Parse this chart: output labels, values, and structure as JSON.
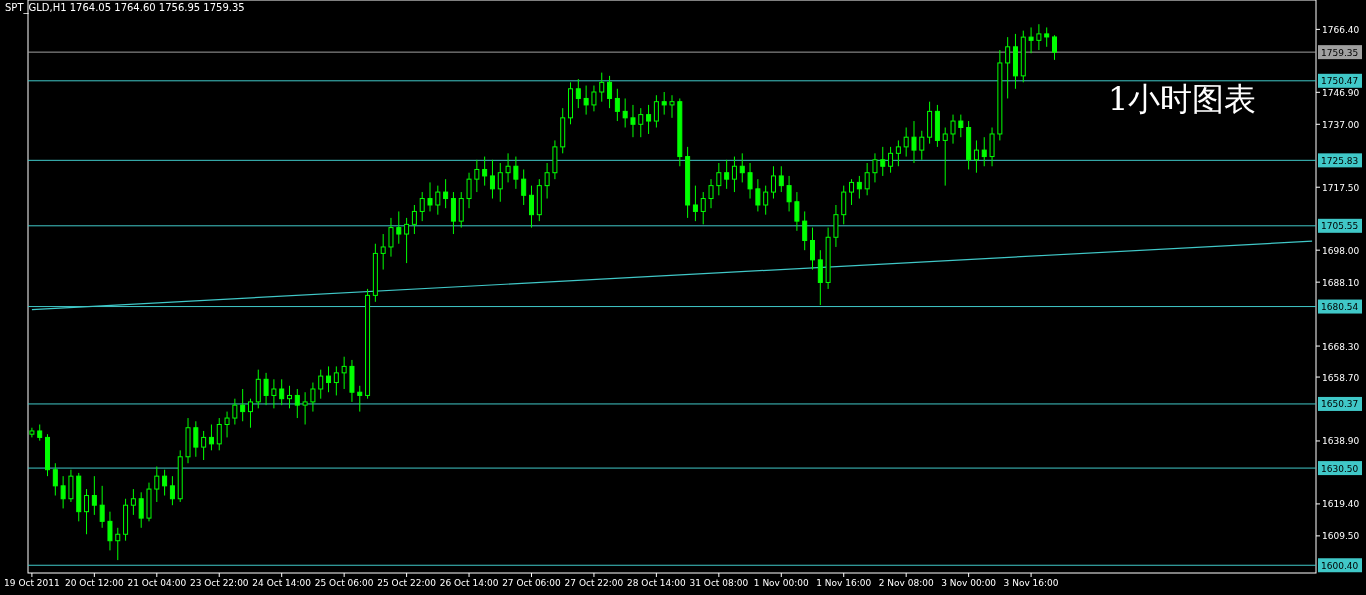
{
  "chart_data": {
    "type": "candlestick",
    "title": "SPT_GLD,H1  1764.05 1764.60 1756.95 1759.35",
    "annotations": [
      "1小时图表"
    ],
    "color": "#00ff00",
    "grid": false,
    "categories": [
      "19 Oct 2011",
      null,
      null,
      null,
      null,
      null,
      null,
      null,
      "20 Oct 12:00",
      null,
      null,
      null,
      null,
      null,
      null,
      null,
      "21 Oct 04:00",
      null,
      null,
      null,
      null,
      null,
      null,
      null,
      "23 Oct 22:00",
      null,
      null,
      null,
      null,
      null,
      null,
      null,
      "24 Oct 14:00",
      null,
      null,
      null,
      null,
      null,
      null,
      null,
      "25 Oct 06:00",
      null,
      null,
      null,
      null,
      null,
      null,
      null,
      "25 Oct 22:00",
      null,
      null,
      null,
      null,
      null,
      null,
      null,
      "26 Oct 14:00",
      null,
      null,
      null,
      null,
      null,
      null,
      null,
      "27 Oct 06:00",
      null,
      null,
      null,
      null,
      null,
      null,
      null,
      "27 Oct 22:00",
      null,
      null,
      null,
      null,
      null,
      null,
      null,
      "28 Oct 14:00",
      null,
      null,
      null,
      null,
      null,
      null,
      null,
      "31 Oct 08:00",
      null,
      null,
      null,
      null,
      null,
      null,
      null,
      "1 Nov 00:00",
      null,
      null,
      null,
      null,
      null,
      null,
      null,
      "1 Nov 16:00",
      null,
      null,
      null,
      null,
      null,
      null,
      null,
      "2 Nov 08:00",
      null,
      null,
      null,
      null,
      null,
      null,
      null,
      "3 Nov 00:00",
      null,
      null,
      null,
      null,
      null,
      null,
      null,
      "3 Nov 16:00",
      null,
      null,
      null,
      null,
      null,
      null,
      null,
      null,
      null,
      null,
      null,
      null,
      null,
      null,
      null,
      null,
      null,
      null,
      null,
      null,
      null,
      null,
      null,
      null,
      null,
      null,
      null,
      null,
      null,
      null,
      null,
      null,
      null,
      null,
      null,
      null
    ],
    "ohlc": [
      [
        1641,
        1643,
        1640,
        1642
      ],
      [
        1642,
        1644,
        1639,
        1640
      ],
      [
        1640,
        1641,
        1628,
        1630
      ],
      [
        1630,
        1632,
        1622,
        1625
      ],
      [
        1625,
        1628,
        1618,
        1621
      ],
      [
        1621,
        1630,
        1620,
        1628
      ],
      [
        1628,
        1629,
        1614,
        1617
      ],
      [
        1617,
        1624,
        1610,
        1622
      ],
      [
        1622,
        1628,
        1616,
        1619
      ],
      [
        1619,
        1625,
        1612,
        1614
      ],
      [
        1614,
        1617,
        1605,
        1608
      ],
      [
        1608,
        1612,
        1602,
        1610
      ],
      [
        1610,
        1621,
        1608,
        1619
      ],
      [
        1619,
        1624,
        1616,
        1621
      ],
      [
        1621,
        1623,
        1612,
        1615
      ],
      [
        1615,
        1626,
        1614,
        1624
      ],
      [
        1624,
        1631,
        1620,
        1628
      ],
      [
        1628,
        1630,
        1622,
        1625
      ],
      [
        1625,
        1628,
        1619,
        1621
      ],
      [
        1621,
        1636,
        1620,
        1634
      ],
      [
        1634,
        1646,
        1632,
        1643
      ],
      [
        1643,
        1645,
        1634,
        1637
      ],
      [
        1637,
        1642,
        1633,
        1640
      ],
      [
        1640,
        1644,
        1636,
        1638
      ],
      [
        1638,
        1646,
        1636,
        1644
      ],
      [
        1644,
        1648,
        1640,
        1646
      ],
      [
        1646,
        1652,
        1644,
        1650
      ],
      [
        1650,
        1655,
        1645,
        1648
      ],
      [
        1648,
        1652,
        1643,
        1651
      ],
      [
        1651,
        1661,
        1649,
        1658
      ],
      [
        1658,
        1660,
        1650,
        1653
      ],
      [
        1653,
        1658,
        1649,
        1655
      ],
      [
        1655,
        1658,
        1650,
        1652
      ],
      [
        1652,
        1656,
        1649,
        1653
      ],
      [
        1653,
        1655,
        1646,
        1650
      ],
      [
        1650,
        1654,
        1644,
        1651
      ],
      [
        1651,
        1657,
        1648,
        1655
      ],
      [
        1655,
        1661,
        1652,
        1659
      ],
      [
        1659,
        1662,
        1654,
        1657
      ],
      [
        1657,
        1662,
        1653,
        1660
      ],
      [
        1660,
        1665,
        1655,
        1662
      ],
      [
        1662,
        1664,
        1651,
        1654
      ],
      [
        1654,
        1656,
        1648,
        1653
      ],
      [
        1653,
        1686,
        1652,
        1684
      ],
      [
        1684,
        1700,
        1682,
        1697
      ],
      [
        1697,
        1703,
        1692,
        1699
      ],
      [
        1699,
        1708,
        1696,
        1705
      ],
      [
        1705,
        1710,
        1700,
        1703
      ],
      [
        1703,
        1708,
        1694,
        1706
      ],
      [
        1706,
        1712,
        1703,
        1710
      ],
      [
        1710,
        1716,
        1707,
        1714
      ],
      [
        1714,
        1719,
        1710,
        1712
      ],
      [
        1712,
        1718,
        1709,
        1716
      ],
      [
        1716,
        1720,
        1711,
        1714
      ],
      [
        1714,
        1716,
        1703,
        1707
      ],
      [
        1707,
        1716,
        1705,
        1714
      ],
      [
        1714,
        1722,
        1711,
        1720
      ],
      [
        1720,
        1726,
        1716,
        1723
      ],
      [
        1723,
        1727,
        1718,
        1721
      ],
      [
        1721,
        1726,
        1714,
        1717
      ],
      [
        1717,
        1725,
        1713,
        1722
      ],
      [
        1722,
        1728,
        1719,
        1724
      ],
      [
        1724,
        1727,
        1717,
        1720
      ],
      [
        1720,
        1723,
        1712,
        1715
      ],
      [
        1715,
        1718,
        1705,
        1709
      ],
      [
        1709,
        1720,
        1707,
        1718
      ],
      [
        1718,
        1725,
        1714,
        1722
      ],
      [
        1722,
        1732,
        1720,
        1730
      ],
      [
        1730,
        1742,
        1728,
        1739
      ],
      [
        1739,
        1750,
        1737,
        1748
      ],
      [
        1748,
        1751,
        1742,
        1745
      ],
      [
        1745,
        1749,
        1740,
        1743
      ],
      [
        1743,
        1749,
        1741,
        1747
      ],
      [
        1747,
        1753,
        1744,
        1750
      ],
      [
        1750,
        1752,
        1742,
        1745
      ],
      [
        1745,
        1748,
        1738,
        1741
      ],
      [
        1741,
        1745,
        1736,
        1739
      ],
      [
        1739,
        1743,
        1733,
        1737
      ],
      [
        1737,
        1742,
        1733,
        1740
      ],
      [
        1740,
        1743,
        1734,
        1738
      ],
      [
        1738,
        1746,
        1736,
        1744
      ],
      [
        1744,
        1747,
        1740,
        1743
      ],
      [
        1743,
        1746,
        1739,
        1744
      ],
      [
        1744,
        1745,
        1724,
        1727
      ],
      [
        1727,
        1730,
        1708,
        1712
      ],
      [
        1712,
        1718,
        1707,
        1710
      ],
      [
        1710,
        1716,
        1706,
        1714
      ],
      [
        1714,
        1720,
        1711,
        1718
      ],
      [
        1718,
        1725,
        1715,
        1722
      ],
      [
        1722,
        1726,
        1717,
        1720
      ],
      [
        1720,
        1727,
        1716,
        1724
      ],
      [
        1724,
        1728,
        1719,
        1722
      ],
      [
        1722,
        1725,
        1714,
        1717
      ],
      [
        1717,
        1720,
        1710,
        1712
      ],
      [
        1712,
        1718,
        1709,
        1716
      ],
      [
        1716,
        1724,
        1714,
        1721
      ],
      [
        1721,
        1724,
        1716,
        1718
      ],
      [
        1718,
        1721,
        1710,
        1713
      ],
      [
        1713,
        1716,
        1704,
        1707
      ],
      [
        1707,
        1710,
        1698,
        1701
      ],
      [
        1701,
        1705,
        1692,
        1695
      ],
      [
        1695,
        1698,
        1681,
        1688
      ],
      [
        1688,
        1705,
        1686,
        1702
      ],
      [
        1702,
        1712,
        1699,
        1709
      ],
      [
        1709,
        1718,
        1706,
        1716
      ],
      [
        1716,
        1720,
        1712,
        1719
      ],
      [
        1719,
        1721,
        1714,
        1717
      ],
      [
        1717,
        1725,
        1715,
        1722
      ],
      [
        1722,
        1728,
        1719,
        1726
      ],
      [
        1726,
        1730,
        1721,
        1724
      ],
      [
        1724,
        1730,
        1722,
        1728
      ],
      [
        1728,
        1732,
        1724,
        1730
      ],
      [
        1730,
        1736,
        1727,
        1733
      ],
      [
        1733,
        1738,
        1725,
        1729
      ],
      [
        1729,
        1735,
        1726,
        1733
      ],
      [
        1733,
        1744,
        1731,
        1741
      ],
      [
        1741,
        1743,
        1730,
        1732
      ],
      [
        1732,
        1736,
        1718,
        1734
      ],
      [
        1734,
        1740,
        1731,
        1738
      ],
      [
        1738,
        1740,
        1733,
        1736
      ],
      [
        1736,
        1738,
        1723,
        1726
      ],
      [
        1726,
        1732,
        1722,
        1729
      ],
      [
        1729,
        1733,
        1724,
        1727
      ],
      [
        1727,
        1736,
        1724,
        1734
      ],
      [
        1734,
        1760,
        1732,
        1756
      ],
      [
        1756,
        1764,
        1745,
        1761
      ],
      [
        1761,
        1765,
        1748,
        1752
      ],
      [
        1752,
        1766,
        1750,
        1764
      ],
      [
        1764,
        1767,
        1759,
        1763
      ],
      [
        1763,
        1768,
        1760,
        1765
      ],
      [
        1765,
        1767,
        1761,
        1764.05
      ],
      [
        1764.05,
        1764.6,
        1756.95,
        1759.35
      ],
      null,
      null,
      null,
      null,
      null,
      null,
      null,
      null,
      null,
      null,
      null,
      null,
      null,
      null,
      null,
      null,
      null,
      null,
      null,
      null,
      null,
      null,
      null,
      null,
      null,
      null,
      null,
      null,
      null,
      null,
      null,
      null,
      null
    ],
    "series": [
      {
        "type": "line",
        "color": "#40c8c8",
        "values": [
          1679.6,
          null,
          null,
          null,
          null,
          null,
          null,
          null,
          null,
          null,
          null,
          null,
          null,
          null,
          null,
          null,
          null,
          null,
          null,
          null,
          null,
          null,
          null,
          null,
          null,
          null,
          null,
          null,
          null,
          null,
          null,
          null,
          null,
          null,
          null,
          null,
          null,
          null,
          null,
          null,
          null,
          null,
          null,
          null,
          null,
          null,
          null,
          null,
          null,
          null,
          null,
          null,
          null,
          null,
          null,
          null,
          null,
          null,
          null,
          null,
          null,
          null,
          null,
          null,
          null,
          null,
          null,
          null,
          null,
          null,
          null,
          null,
          null,
          null,
          null,
          null,
          null,
          null,
          null,
          null,
          null,
          null,
          null,
          null,
          null,
          null,
          null,
          null,
          null,
          null,
          null,
          null,
          null,
          null,
          null,
          null,
          null,
          null,
          null,
          null,
          null,
          null,
          null,
          null,
          null,
          null,
          null,
          null,
          null,
          null,
          null,
          null,
          null,
          null,
          null,
          null,
          null,
          null,
          null,
          null,
          null,
          null,
          null,
          null,
          null,
          null,
          null,
          null,
          null,
          null,
          null,
          null,
          null,
          null,
          null,
          null,
          null,
          null,
          null,
          null,
          null,
          null,
          null,
          null,
          null,
          null,
          null,
          null,
          null,
          null,
          null,
          null,
          null,
          null,
          null,
          null,
          null,
          null,
          null,
          null,
          null,
          null,
          null,
          null,
          1700.8
        ]
      }
    ],
    "ylim": [
      1598.0,
      1775.5
    ],
    "yticks": [
      {
        "value": 1766.4,
        "label": "1766.40"
      },
      {
        "value": 1746.9,
        "label": "1746.90"
      },
      {
        "value": 1737.0,
        "label": "1737.00"
      },
      {
        "value": 1717.5,
        "label": "1717.50"
      },
      {
        "value": 1698.0,
        "label": "1698.00"
      },
      {
        "value": 1688.1,
        "label": "1688.10"
      },
      {
        "value": 1668.3,
        "label": "1668.30"
      },
      {
        "value": 1658.7,
        "label": "1658.70"
      },
      {
        "value": 1638.9,
        "label": "1638.90"
      },
      {
        "value": 1619.4,
        "label": "1619.40"
      },
      {
        "value": 1609.5,
        "label": "1609.50"
      }
    ],
    "ref_lines": [
      {
        "axis": "y",
        "value": 1759.35,
        "label": "1759.35",
        "color": "#a0a0a0"
      },
      {
        "axis": "y",
        "value": 1750.47,
        "label": "1750.47",
        "color": "#40c8c8"
      },
      {
        "axis": "y",
        "value": 1725.83,
        "label": "1725.83",
        "color": "#40c8c8"
      },
      {
        "axis": "y",
        "value": 1705.55,
        "label": "1705.55",
        "color": "#40c8c8"
      },
      {
        "axis": "y",
        "value": 1680.54,
        "label": "1680.54",
        "color": "#40c8c8"
      },
      {
        "axis": "y",
        "value": 1650.37,
        "label": "1650.37",
        "color": "#40c8c8"
      },
      {
        "axis": "y",
        "value": 1630.5,
        "label": "1630.50",
        "color": "#40c8c8"
      },
      {
        "axis": "y",
        "value": 1600.4,
        "label": "1600.40",
        "color": "#40c8c8"
      }
    ]
  }
}
